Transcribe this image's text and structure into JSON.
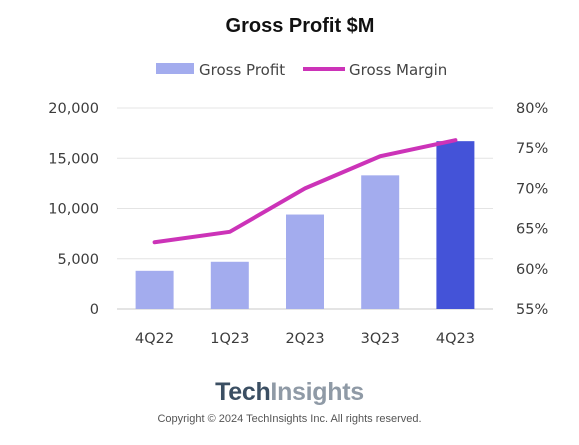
{
  "chart_data": {
    "type": "bar",
    "title": "Gross Profit $M",
    "categories": [
      "4Q22",
      "1Q23",
      "2Q23",
      "3Q23",
      "4Q23"
    ],
    "series": [
      {
        "name": "Gross Profit",
        "type": "bar",
        "axis": "left",
        "values": [
          3800,
          4700,
          9400,
          13300,
          16700
        ],
        "colors": [
          "#a3acee",
          "#a3acee",
          "#a3acee",
          "#a3acee",
          "#4453d8"
        ]
      },
      {
        "name": "Gross Margin",
        "type": "line",
        "axis": "right",
        "values": [
          63.3,
          64.6,
          70.0,
          74.0,
          76.0
        ],
        "color": "#cc33b8"
      }
    ],
    "y_left": {
      "range": [
        0,
        20000
      ],
      "ticks": [
        "0",
        "5,000",
        "10,000",
        "15,000",
        "20,000"
      ]
    },
    "y_right": {
      "range": [
        55,
        80
      ],
      "ticks": [
        "55%",
        "60%",
        "65%",
        "70%",
        "75%",
        "80%"
      ]
    },
    "grid": true,
    "legend_position": "top-center"
  },
  "footer": {
    "brand_part1": "Tech",
    "brand_part2": "Insights",
    "copyright": "Copyright © 2024 TechInsights Inc.  All rights reserved."
  }
}
